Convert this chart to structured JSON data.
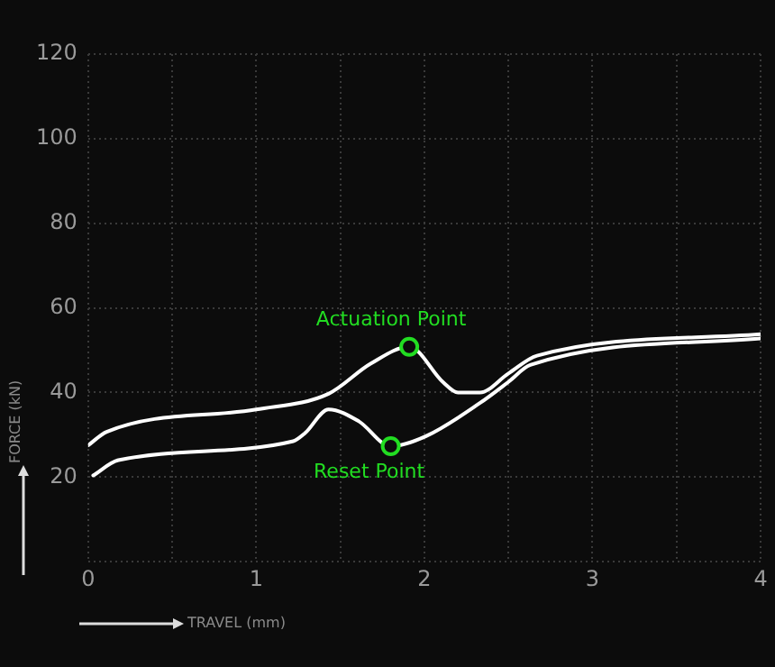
{
  "chart_data": {
    "type": "line",
    "xlabel": "TRAVEL (mm)",
    "ylabel": "FORCE (kN)",
    "xlim": [
      0,
      4
    ],
    "xticks": [
      0,
      {
        "value": 0.5,
        "label": null
      },
      1,
      {
        "value": 1.5,
        "label": null
      },
      2,
      {
        "value": 2.5,
        "label": null
      },
      3,
      {
        "value": 3.5,
        "label": null
      },
      4
    ],
    "ylim": [
      0,
      120
    ],
    "yticks": [
      {
        "value": 0,
        "label": null
      },
      20,
      40,
      60,
      80,
      100,
      120
    ],
    "grid": true,
    "marker": "none",
    "line_style": "solid",
    "series": [
      {
        "color": "#ffffff",
        "x": [
          0.0,
          0.11,
          1.0,
          1.43,
          1.68,
          1.91,
          2.11,
          2.2,
          2.33,
          2.5,
          2.67,
          4.0
        ],
        "values": [
          27.5,
          30.7,
          36,
          39.7,
          46.8,
          50.8,
          42.5,
          40,
          40,
          44.5,
          48.7,
          53.8
        ]
      },
      {
        "color": "#ffffff",
        "x": [
          0.03,
          0.18,
          1.22,
          1.29,
          1.43,
          1.61,
          1.8,
          2.01,
          2.33,
          2.5,
          2.63,
          4.0
        ],
        "values": [
          20.4,
          24,
          28.5,
          30.4,
          36,
          33.2,
          27.3,
          29.7,
          37.5,
          42.5,
          46.5,
          52.8
        ]
      }
    ],
    "annotations": [
      {
        "text": "Actuation Point",
        "x": 1.91,
        "y": 50.8
      },
      {
        "text": "Reset Point",
        "x": 1.8,
        "y": 27.3
      }
    ]
  }
}
